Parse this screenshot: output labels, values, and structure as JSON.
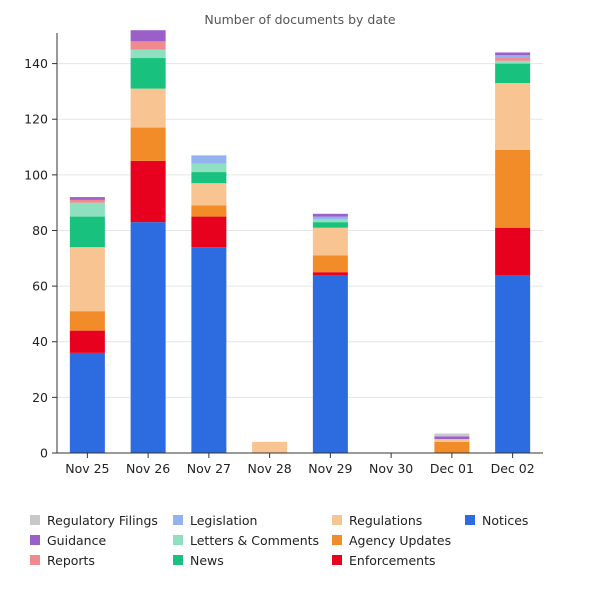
{
  "chart_data": {
    "type": "bar",
    "stacked": true,
    "title": "Number of documents by date",
    "xlabel": "",
    "ylabel": "",
    "ylim": [
      0,
      151
    ],
    "yticks": [
      0,
      20,
      40,
      60,
      80,
      100,
      120,
      140
    ],
    "grid": true,
    "legend_position": "bottom",
    "categories": [
      "Nov 25",
      "Nov 26",
      "Nov 27",
      "Nov 28",
      "Nov 29",
      "Nov 30",
      "Dec 01",
      "Dec 02"
    ],
    "series": [
      {
        "name": "Notices",
        "color": "#2d6be0",
        "values": [
          36,
          83,
          74,
          0,
          64,
          0,
          0,
          64
        ]
      },
      {
        "name": "Enforcements",
        "color": "#e8001f",
        "values": [
          8,
          22,
          11,
          0,
          1,
          0,
          0,
          17
        ]
      },
      {
        "name": "Agency Updates",
        "color": "#f28c28",
        "values": [
          7,
          12,
          4,
          0,
          6,
          0,
          4,
          28
        ]
      },
      {
        "name": "Regulations",
        "color": "#f8c491",
        "values": [
          23,
          14,
          8,
          4,
          10,
          0,
          1,
          24
        ]
      },
      {
        "name": "News",
        "color": "#19c17f",
        "values": [
          11,
          11,
          4,
          0,
          2,
          0,
          0,
          7
        ]
      },
      {
        "name": "Letters & Comments",
        "color": "#8ee0c0",
        "values": [
          5,
          3,
          3,
          0,
          1,
          0,
          0,
          1
        ]
      },
      {
        "name": "Reports",
        "color": "#f08a8f",
        "values": [
          1,
          3,
          0,
          0,
          0,
          0,
          0,
          1
        ]
      },
      {
        "name": "Legislation",
        "color": "#93b3f0",
        "values": [
          0,
          0,
          3,
          0,
          1,
          0,
          0,
          1
        ]
      },
      {
        "name": "Guidance",
        "color": "#9b5fc8",
        "values": [
          1,
          4,
          0,
          0,
          1,
          0,
          1,
          1
        ]
      },
      {
        "name": "Regulatory Filings",
        "color": "#c8c8c8",
        "values": [
          0,
          0,
          0,
          0,
          0,
          0,
          1,
          0
        ]
      }
    ],
    "legend": [
      {
        "name": "Regulatory Filings",
        "color": "#c8c8c8"
      },
      {
        "name": "Guidance",
        "color": "#9b5fc8"
      },
      {
        "name": "Reports",
        "color": "#f08a8f"
      },
      {
        "name": "Legislation",
        "color": "#93b3f0"
      },
      {
        "name": "Letters & Comments",
        "color": "#8ee0c0"
      },
      {
        "name": "News",
        "color": "#19c17f"
      },
      {
        "name": "Regulations",
        "color": "#f8c491"
      },
      {
        "name": "Agency Updates",
        "color": "#f28c28"
      },
      {
        "name": "Enforcements",
        "color": "#e8001f"
      },
      {
        "name": "Notices",
        "color": "#2d6be0"
      }
    ]
  }
}
